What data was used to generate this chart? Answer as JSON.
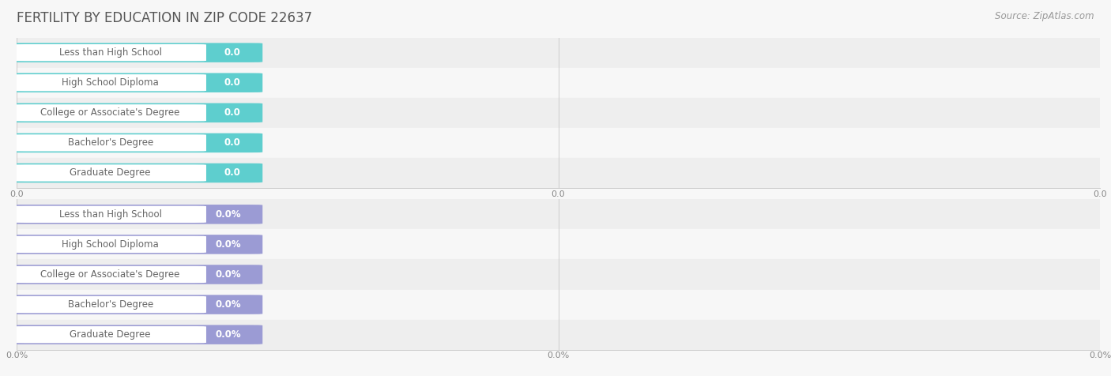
{
  "title": "FERTILITY BY EDUCATION IN ZIP CODE 22637",
  "source": "Source: ZipAtlas.com",
  "categories": [
    "Less than High School",
    "High School Diploma",
    "College or Associate's Degree",
    "Bachelor's Degree",
    "Graduate Degree"
  ],
  "top_values": [
    0.0,
    0.0,
    0.0,
    0.0,
    0.0
  ],
  "bottom_values": [
    0.0,
    0.0,
    0.0,
    0.0,
    0.0
  ],
  "top_bar_color": "#5ecece",
  "bottom_bar_color": "#9b9bd4",
  "fig_bg_color": "#f7f7f7",
  "row_bg_even": "#eeeeee",
  "row_bg_odd": "#f7f7f7",
  "title_fontsize": 12,
  "label_fontsize": 8.5,
  "value_fontsize": 8.5,
  "tick_fontsize": 8,
  "source_fontsize": 8.5,
  "tick_color": "#aaaaaa",
  "title_color": "#555555",
  "label_color": "#666666",
  "value_color": "#ffffff",
  "source_color": "#999999",
  "top_tick_labels": [
    "0.0",
    "0.0",
    "0.0"
  ],
  "bottom_tick_labels": [
    "0.0%",
    "0.0%",
    "0.0%"
  ]
}
